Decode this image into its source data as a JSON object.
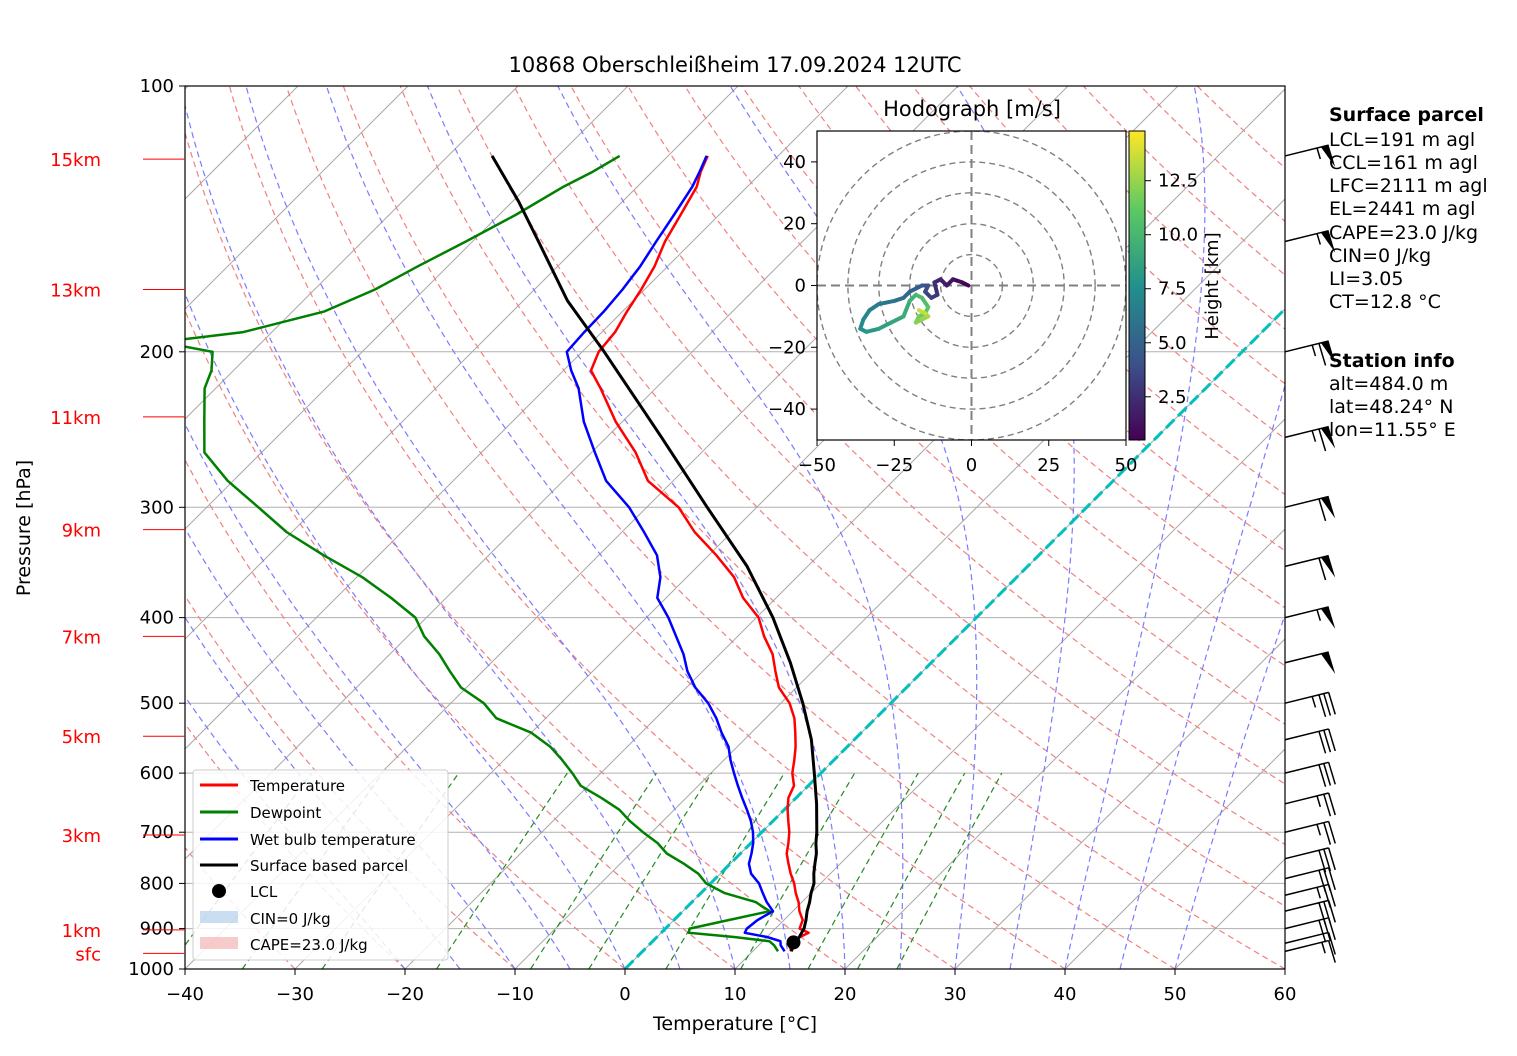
{
  "chart_data": {
    "type": "skew-t",
    "title": "10868 Oberschleißheim 17.09.2024 12UTC",
    "xlabel": "Temperature [°C]",
    "ylabel": "Pressure [hPa]",
    "xlim": [
      -40,
      60
    ],
    "ylim": [
      1000,
      100
    ],
    "log_pressure_axis": true,
    "x_ticks": [
      "−40",
      "−30",
      "−20",
      "−10",
      "0",
      "10",
      "20",
      "30",
      "40",
      "50",
      "60"
    ],
    "x_tick_values": [
      -40,
      -30,
      -20,
      -10,
      0,
      10,
      20,
      30,
      40,
      50,
      60
    ],
    "y_ticks": [
      "1000",
      "900",
      "800",
      "700",
      "600",
      "500",
      "400",
      "300",
      "200",
      "100"
    ],
    "y_tick_values": [
      1000,
      900,
      800,
      700,
      600,
      500,
      400,
      300,
      200,
      100
    ],
    "height_labels": [
      {
        "label": "sfc",
        "p": 960
      },
      {
        "label": "1km",
        "p": 903
      },
      {
        "label": "3km",
        "p": 705
      },
      {
        "label": "5km",
        "p": 545
      },
      {
        "label": "7km",
        "p": 420
      },
      {
        "label": "9km",
        "p": 318
      },
      {
        "label": "11km",
        "p": 237
      },
      {
        "label": "13km",
        "p": 170
      },
      {
        "label": "15km",
        "p": 121
      }
    ],
    "grid": true,
    "colors": {
      "temperature": "#ff0000",
      "dewpoint": "#008000",
      "wetbulb": "#0000ff",
      "parcel": "#000000",
      "freezing": "#00bfbf",
      "dry_adiabat": "#f08080",
      "moist_adiabat": "#7b7bff",
      "mixing_ratio": "#228b22",
      "isotherm": "#a9a9a9"
    },
    "series": [
      {
        "name": "Temperature",
        "key": "temperature",
        "p": [
          955,
          940,
          930,
          920,
          910,
          900,
          880,
          860,
          840,
          820,
          800,
          780,
          760,
          740,
          720,
          700,
          680,
          660,
          640,
          620,
          600,
          580,
          560,
          540,
          520,
          500,
          480,
          460,
          440,
          420,
          400,
          380,
          360,
          340,
          320,
          300,
          280,
          260,
          240,
          220,
          210,
          200,
          190,
          180,
          170,
          160,
          150,
          140,
          130,
          125,
          120
        ],
        "t": [
          13.5,
          12.8,
          12.3,
          13,
          13.4,
          12.2,
          11.7,
          10.6,
          9.7,
          8.6,
          7.6,
          6.4,
          5.3,
          4.2,
          3.4,
          2.5,
          1.4,
          0.3,
          -0.7,
          -1.3,
          -2.6,
          -3.6,
          -4.7,
          -6.0,
          -7.4,
          -9.2,
          -11.6,
          -13.4,
          -15.2,
          -17.6,
          -19.8,
          -23.0,
          -25.7,
          -29.3,
          -33.4,
          -37.1,
          -42.3,
          -46.0,
          -50.6,
          -55.0,
          -57.5,
          -58.5,
          -58.8,
          -59.6,
          -60.3,
          -61.2,
          -62.5,
          -63.5,
          -64.6,
          -65.6,
          -66.4
        ]
      },
      {
        "name": "Dewpoint",
        "key": "dewpoint",
        "p": [
          955,
          940,
          930,
          920,
          910,
          900,
          880,
          860,
          840,
          820,
          800,
          780,
          760,
          740,
          720,
          700,
          680,
          660,
          640,
          620,
          600,
          580,
          560,
          540,
          520,
          500,
          480,
          460,
          440,
          420,
          400,
          380,
          360,
          340,
          320,
          300,
          280,
          260,
          240,
          220,
          210,
          200,
          195,
          190,
          180,
          170,
          160,
          150,
          140,
          130,
          125,
          120
        ],
        "t": [
          12.3,
          11.4,
          10.6,
          7,
          2.5,
          2.2,
          5.0,
          7.9,
          5.8,
          2.1,
          -0.4,
          -2.0,
          -4.2,
          -6.7,
          -8.5,
          -10.8,
          -13.0,
          -15.0,
          -17.7,
          -20.7,
          -22.6,
          -24.7,
          -27.0,
          -30.0,
          -34.5,
          -37.0,
          -40.5,
          -43.0,
          -45.5,
          -48.5,
          -51.0,
          -55.0,
          -59.5,
          -65.0,
          -70.5,
          -75.3,
          -80.5,
          -85.2,
          -88.0,
          -91.0,
          -92.0,
          -93.6,
          -99.2,
          -92.6,
          -87.1,
          -84.5,
          -82.7,
          -80.6,
          -78.5,
          -76.7,
          -75.4,
          -74.4
        ]
      },
      {
        "name": "Wet bulb temperature",
        "key": "wetbulb",
        "p": [
          955,
          940,
          930,
          920,
          910,
          900,
          880,
          860,
          840,
          820,
          800,
          780,
          760,
          740,
          720,
          700,
          680,
          660,
          640,
          620,
          600,
          580,
          560,
          540,
          520,
          500,
          480,
          460,
          440,
          420,
          400,
          380,
          360,
          340,
          320,
          300,
          280,
          260,
          240,
          220,
          210,
          200,
          190,
          180,
          170,
          160,
          150,
          140,
          130,
          125,
          120
        ],
        "t": [
          12.9,
          12.0,
          11.6,
          10.0,
          7.6,
          7.4,
          7.6,
          8.2,
          6.8,
          5.6,
          4.4,
          2.8,
          1.7,
          1.0,
          0.2,
          -0.8,
          -2.0,
          -3.4,
          -4.9,
          -6.4,
          -7.9,
          -9.4,
          -10.8,
          -12.7,
          -14.5,
          -16.6,
          -19.2,
          -21.4,
          -23.3,
          -25.6,
          -28.0,
          -30.8,
          -32.4,
          -34.7,
          -38.0,
          -41.6,
          -46.1,
          -49.7,
          -53.5,
          -57.0,
          -59.3,
          -61.4,
          -61.6,
          -61.7,
          -62.0,
          -62.5,
          -63.3,
          -64.1,
          -65.0,
          -65.7,
          -66.5
        ]
      },
      {
        "name": "Surface based parcel",
        "key": "parcel",
        "p": [
          955,
          940,
          930,
          900,
          880,
          860,
          840,
          820,
          800,
          780,
          760,
          740,
          720,
          700,
          650,
          600,
          550,
          500,
          450,
          400,
          350,
          300,
          250,
          200,
          175,
          150,
          135,
          120
        ],
        "t": [
          13.5,
          13.2,
          13.1,
          12.6,
          12.0,
          11.3,
          10.7,
          10.0,
          9.4,
          8.5,
          7.7,
          6.9,
          5.9,
          5.0,
          2.4,
          -0.6,
          -3.9,
          -8.0,
          -12.8,
          -18.5,
          -25.5,
          -34.5,
          -45.0,
          -58.0,
          -66.0,
          -74.0,
          -79.5,
          -86.0
        ]
      }
    ],
    "lcl": {
      "p": 933,
      "t": 12.9
    },
    "freezing_level": {
      "t": 0
    },
    "legend": {
      "placement": "lower-left",
      "entries": [
        "Temperature",
        "Dewpoint",
        "Wet bulb temperature",
        "Surface based parcel",
        "LCL",
        "CIN=0 J/kg",
        "CAPE=23.0 J/kg"
      ]
    },
    "wind_barbs": [
      {
        "p": 955,
        "speed_kt": 18
      },
      {
        "p": 935,
        "speed_kt": 12
      },
      {
        "p": 900,
        "speed_kt": 30
      },
      {
        "p": 860,
        "speed_kt": 30
      },
      {
        "p": 825,
        "speed_kt": 25
      },
      {
        "p": 790,
        "speed_kt": 30
      },
      {
        "p": 750,
        "speed_kt": 30
      },
      {
        "p": 700,
        "speed_kt": 25
      },
      {
        "p": 650,
        "speed_kt": 25
      },
      {
        "p": 600,
        "speed_kt": 30
      },
      {
        "p": 550,
        "speed_kt": 30
      },
      {
        "p": 500,
        "speed_kt": 35
      },
      {
        "p": 450,
        "speed_kt": 50
      },
      {
        "p": 400,
        "speed_kt": 55
      },
      {
        "p": 350,
        "speed_kt": 60
      },
      {
        "p": 300,
        "speed_kt": 60
      },
      {
        "p": 250,
        "speed_kt": 65
      },
      {
        "p": 200,
        "speed_kt": 65
      },
      {
        "p": 150,
        "speed_kt": 55
      },
      {
        "p": 120,
        "speed_kt": 55
      }
    ]
  },
  "hodograph": {
    "title": "Hodograph [m/s]",
    "xlim": [
      -50,
      50
    ],
    "ylim": [
      -50,
      50
    ],
    "x_ticks": [
      "−50",
      "−25",
      "0",
      "25",
      "50"
    ],
    "x_tick_values": [
      -50,
      -25,
      0,
      25,
      50
    ],
    "y_ticks": [
      "40",
      "20",
      "0",
      "−20",
      "−40"
    ],
    "y_tick_values": [
      40,
      20,
      0,
      -20,
      -40
    ],
    "rings": [
      10,
      20,
      30,
      40,
      50
    ],
    "colorbar_label": "Height [km]",
    "colorbar_ticks": [
      "2.5",
      "5.0",
      "7.5",
      "10.0",
      "12.5"
    ],
    "colorbar_tick_values": [
      2.5,
      5.0,
      7.5,
      10.0,
      12.5
    ],
    "height_range": [
      0.5,
      14.8
    ],
    "u": [
      -1,
      -3,
      -6,
      -8,
      -10,
      -12,
      -11,
      -13,
      -15,
      -14,
      -16,
      -18,
      -20,
      -22,
      -25,
      -30,
      -33,
      -35,
      -36,
      -34,
      -30,
      -26,
      -22,
      -20,
      -18,
      -16,
      -14,
      -15,
      -17,
      -18,
      -16,
      -14,
      -15,
      -17
    ],
    "v": [
      0,
      1,
      2,
      0,
      2,
      1,
      -3,
      -4,
      -2,
      0,
      0,
      -1,
      -2,
      -4,
      -5,
      -6,
      -8,
      -11,
      -14,
      -15,
      -14,
      -12,
      -10,
      -5,
      -3,
      -4,
      -7,
      -9,
      -10,
      -12,
      -11,
      -10,
      -9,
      -8
    ],
    "h": [
      0.5,
      0.9,
      1.3,
      1.7,
      2.1,
      2.5,
      2.9,
      3.3,
      3.7,
      4.1,
      4.5,
      4.9,
      5.3,
      5.7,
      6.1,
      6.5,
      6.9,
      7.3,
      7.7,
      8.1,
      8.5,
      8.9,
      9.3,
      9.7,
      10.1,
      10.5,
      10.9,
      11.3,
      11.7,
      12.1,
      12.5,
      13.0,
      13.6,
      14.3
    ]
  },
  "info": {
    "surface_title": "Surface parcel",
    "surface_lines": [
      "LCL=191 m agl",
      "CCL=161 m agl",
      "LFC=2111 m agl",
      "EL=2441 m agl",
      "CAPE=23.0 J/kg",
      "CIN=0 J/kg",
      "LI=3.05",
      "CT=12.8 °C"
    ],
    "station_title": "Station info",
    "station_lines": [
      "alt=484.0 m",
      "lat=48.24° N",
      "lon=11.55° E"
    ]
  }
}
